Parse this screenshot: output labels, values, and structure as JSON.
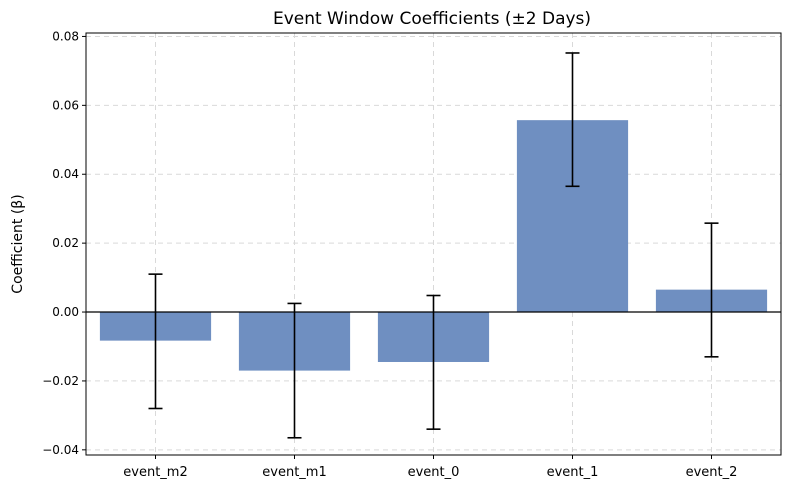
{
  "chart_data": {
    "type": "bar",
    "title": "Event Window Coefficients (±2 Days)",
    "xlabel": "",
    "ylabel": "Coefficient (β)",
    "categories": [
      "event_m2",
      "event_m1",
      "event_0",
      "event_1",
      "event_2"
    ],
    "values": [
      -0.0083,
      -0.017,
      -0.0145,
      0.0557,
      0.0065
    ],
    "error_low": [
      -0.028,
      -0.0365,
      -0.034,
      0.0365,
      -0.013
    ],
    "error_high": [
      0.011,
      0.0025,
      0.0048,
      0.0752,
      0.0258
    ],
    "ylim": [
      -0.0415,
      0.081
    ],
    "yticks": [
      -0.04,
      -0.02,
      0.0,
      0.02,
      0.04,
      0.06,
      0.08
    ],
    "ytick_labels": [
      "−0.04",
      "−0.02",
      "0.00",
      "0.02",
      "0.04",
      "0.06",
      "0.08"
    ],
    "grid": true,
    "zero_line": true,
    "colors": {
      "bar": "#6f8fc1",
      "error_bar": "#000000",
      "grid": "#d9d9d9",
      "zero_line": "#000000"
    }
  }
}
